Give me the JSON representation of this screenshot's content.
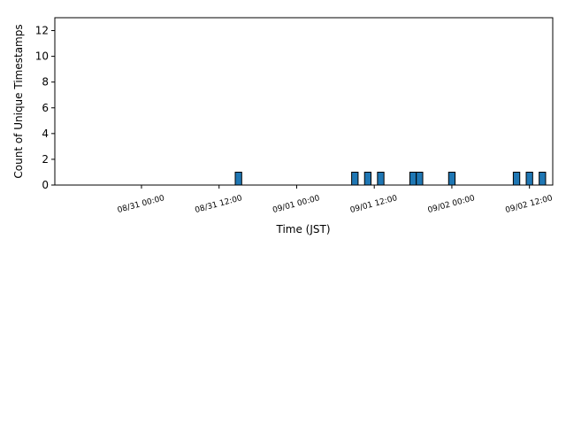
{
  "chart_data": {
    "type": "bar",
    "title": "",
    "xlabel": "Time (JST)",
    "ylabel": "Count of Unique Timestamps",
    "ylim": [
      0,
      13
    ],
    "yticks": [
      0,
      2,
      4,
      6,
      8,
      10,
      12
    ],
    "xlim": [
      "2008-08-30 11:00",
      "2008-09-02 14:00"
    ],
    "xticks": [
      "08/31 00:00",
      "08/31 12:00",
      "09/01 00:00",
      "09/01 12:00",
      "09/02 00:00",
      "09/02 12:00"
    ],
    "bar_width_hours": 1,
    "bars": [
      {
        "x": "2008-08-31 15:00",
        "value": 1
      },
      {
        "x": "2008-09-01 09:00",
        "value": 1
      },
      {
        "x": "2008-09-01 11:00",
        "value": 1
      },
      {
        "x": "2008-09-01 13:00",
        "value": 1
      },
      {
        "x": "2008-09-01 18:00",
        "value": 1
      },
      {
        "x": "2008-09-01 19:00",
        "value": 1
      },
      {
        "x": "2008-09-02 00:00",
        "value": 1
      },
      {
        "x": "2008-09-02 10:00",
        "value": 1
      },
      {
        "x": "2008-09-02 12:00",
        "value": 1
      },
      {
        "x": "2008-09-02 14:00",
        "value": 1
      }
    ],
    "bar_color": "#1f77b4",
    "edge_color": "#000000",
    "grid": false,
    "legend": false
  }
}
